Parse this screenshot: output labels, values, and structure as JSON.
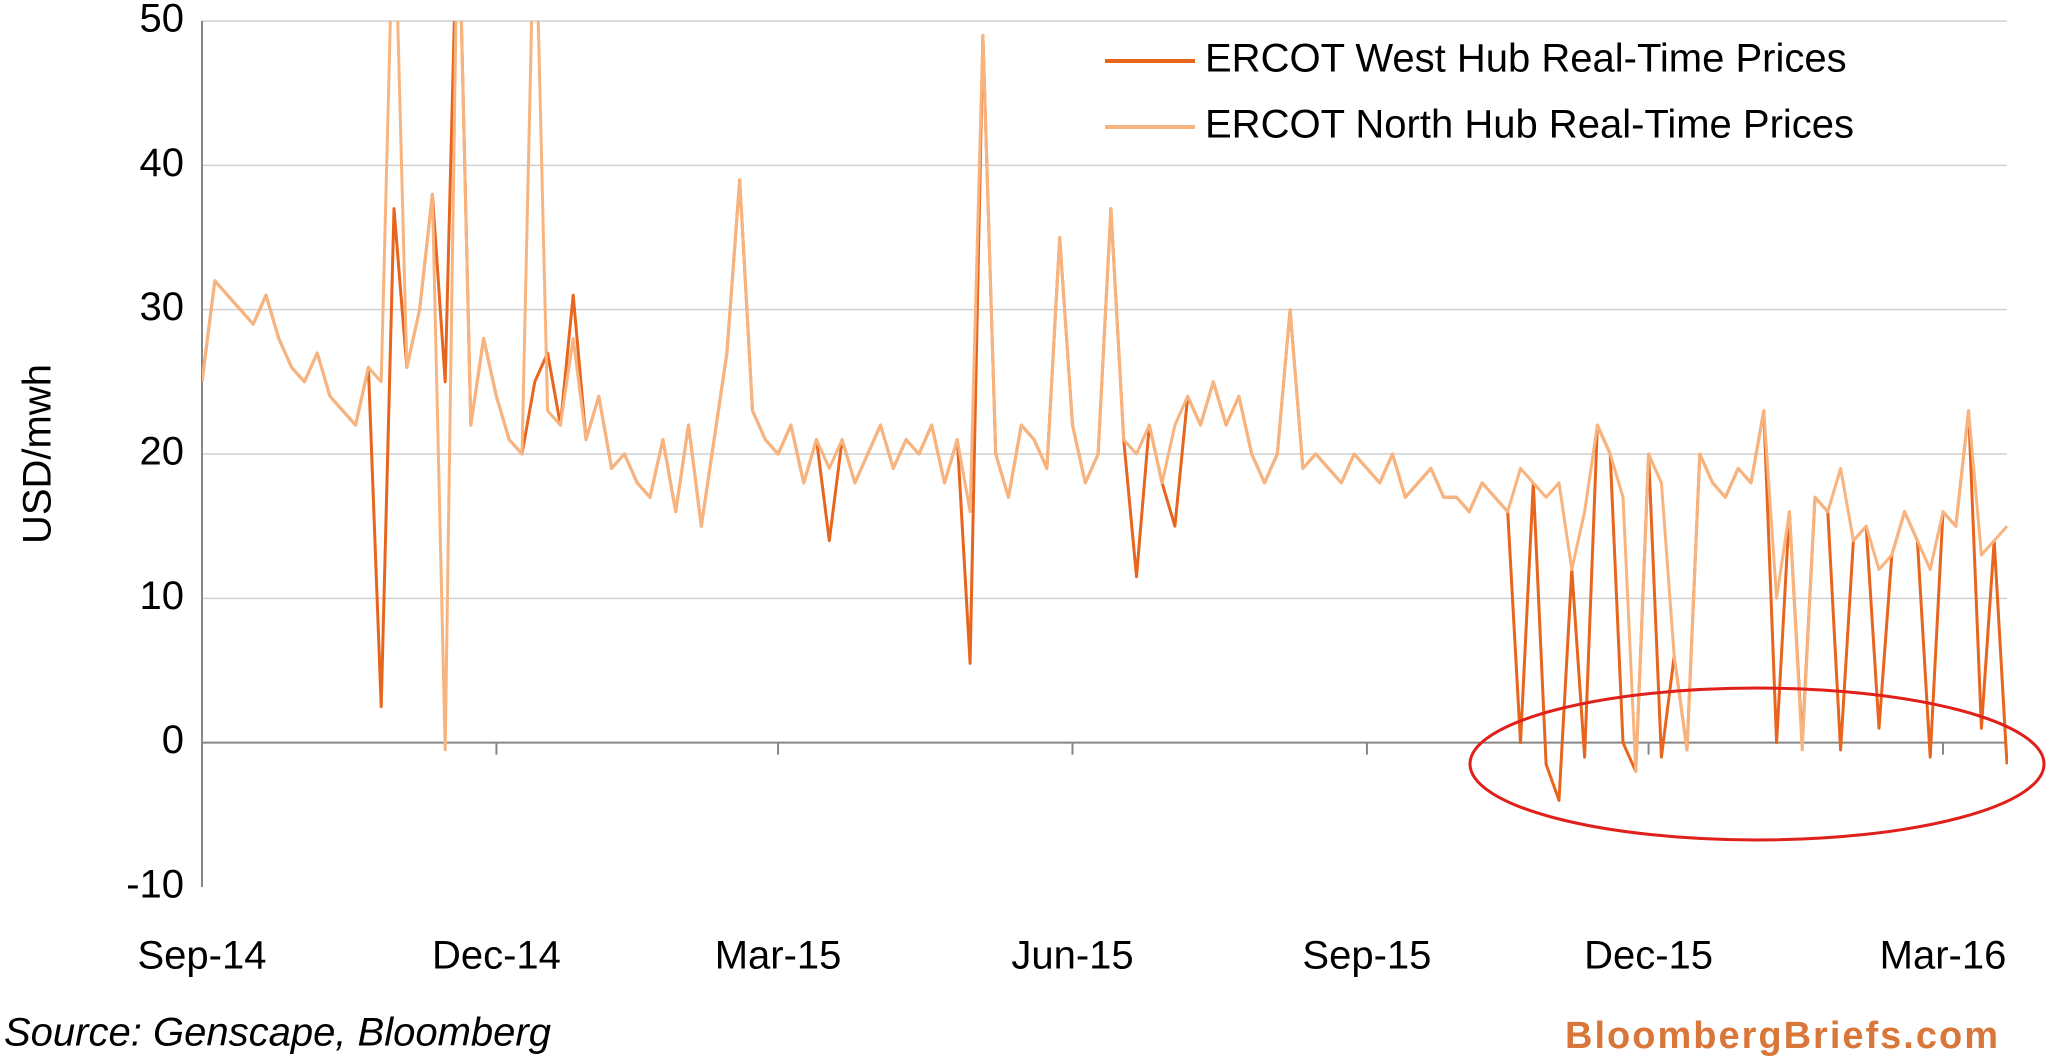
{
  "chart_data": {
    "type": "line",
    "y_label": "USD/mwh",
    "source": "Source: Genscape, Bloomberg",
    "credit": "BloombergBriefs.com",
    "ylim": [
      -10,
      50
    ],
    "yticks": [
      -10,
      0,
      10,
      20,
      30,
      40,
      50
    ],
    "grid": true,
    "legend": "top-right",
    "categories": [
      "Sep-14",
      null,
      null,
      null,
      null,
      null,
      null,
      null,
      null,
      null,
      null,
      null,
      null,
      null,
      null,
      null,
      null,
      null,
      null,
      null,
      null,
      null,
      null,
      "Dec-14",
      null,
      null,
      null,
      null,
      null,
      null,
      null,
      null,
      null,
      null,
      null,
      null,
      null,
      null,
      null,
      null,
      null,
      null,
      null,
      null,
      null,
      "Mar-15",
      null,
      null,
      null,
      null,
      null,
      null,
      null,
      null,
      null,
      null,
      null,
      null,
      null,
      null,
      null,
      null,
      null,
      null,
      null,
      null,
      null,
      null,
      "Jun-15",
      null,
      null,
      null,
      null,
      null,
      null,
      null,
      null,
      null,
      null,
      null,
      null,
      null,
      null,
      null,
      null,
      null,
      null,
      null,
      null,
      null,
      null,
      "Sep-15",
      null,
      null,
      null,
      null,
      null,
      null,
      null,
      null,
      null,
      null,
      null,
      null,
      null,
      null,
      null,
      null,
      null,
      null,
      null,
      null,
      null,
      "Dec-15",
      null,
      null,
      null,
      null,
      null,
      null,
      null,
      null,
      null,
      null,
      null,
      null,
      null,
      null,
      null,
      null,
      null,
      null,
      null,
      null,
      null,
      null,
      "Mar-16",
      null,
      null,
      null,
      null,
      null
    ],
    "series": [
      {
        "name": "ERCOT West Hub Real-Time Prices",
        "color": "#e8651e",
        "values": [
          25,
          32,
          31,
          30,
          29,
          31,
          28,
          26,
          25,
          27,
          24,
          23,
          22,
          26,
          2.5,
          37,
          26,
          30,
          38,
          25,
          60,
          22,
          28,
          24,
          21,
          20,
          25,
          27,
          22,
          31,
          21,
          24,
          19,
          20,
          18,
          17,
          21,
          16,
          22,
          15,
          21,
          27,
          39,
          23,
          21,
          20,
          22,
          18,
          21,
          14,
          21,
          18,
          20,
          22,
          19,
          21,
          20,
          22,
          18,
          21,
          5.5,
          49,
          20,
          17,
          22,
          21,
          19,
          35,
          22,
          18,
          20,
          37,
          21,
          11.5,
          22,
          18,
          15,
          24,
          22,
          25,
          22,
          24,
          20,
          18,
          20,
          30,
          19,
          20,
          19,
          18,
          20,
          19,
          18,
          20,
          17,
          18,
          19,
          17,
          17,
          16,
          18,
          17,
          16,
          0,
          18,
          -1.5,
          -4,
          12,
          -1,
          22,
          20,
          0,
          -2,
          20,
          -1,
          6,
          -0.5,
          20,
          18,
          17,
          19,
          18,
          23,
          0,
          16,
          0,
          17,
          16,
          -0.5,
          14,
          15,
          1,
          13,
          16,
          14,
          -1,
          16,
          15,
          23,
          1,
          14,
          -1.5
        ]
      },
      {
        "name": "ERCOT North Hub Real-Time Prices",
        "color": "#f8b47e",
        "values": [
          25,
          32,
          31,
          30,
          29,
          31,
          28,
          26,
          25,
          27,
          24,
          23,
          22,
          26,
          25,
          60,
          26,
          30,
          38,
          -0.5,
          60,
          22,
          28,
          24,
          21,
          20,
          60,
          23,
          22,
          28,
          21,
          24,
          19,
          20,
          18,
          17,
          21,
          16,
          22,
          15,
          21,
          27,
          39,
          23,
          21,
          20,
          22,
          18,
          21,
          19,
          21,
          18,
          20,
          22,
          19,
          21,
          20,
          22,
          18,
          21,
          16,
          49,
          20,
          17,
          22,
          21,
          19,
          35,
          22,
          18,
          20,
          37,
          21,
          20,
          22,
          18,
          22,
          24,
          22,
          25,
          22,
          24,
          20,
          18,
          20,
          30,
          19,
          20,
          19,
          18,
          20,
          19,
          18,
          20,
          17,
          18,
          19,
          17,
          17,
          16,
          18,
          17,
          16,
          19,
          18,
          17,
          18,
          12,
          16,
          22,
          20,
          17,
          -2,
          20,
          18,
          6,
          -0.5,
          20,
          18,
          17,
          19,
          18,
          23,
          10,
          16,
          -0.5,
          17,
          16,
          19,
          14,
          15,
          12,
          13,
          16,
          14,
          12,
          16,
          15,
          23,
          13,
          14,
          15
        ]
      }
    ]
  }
}
